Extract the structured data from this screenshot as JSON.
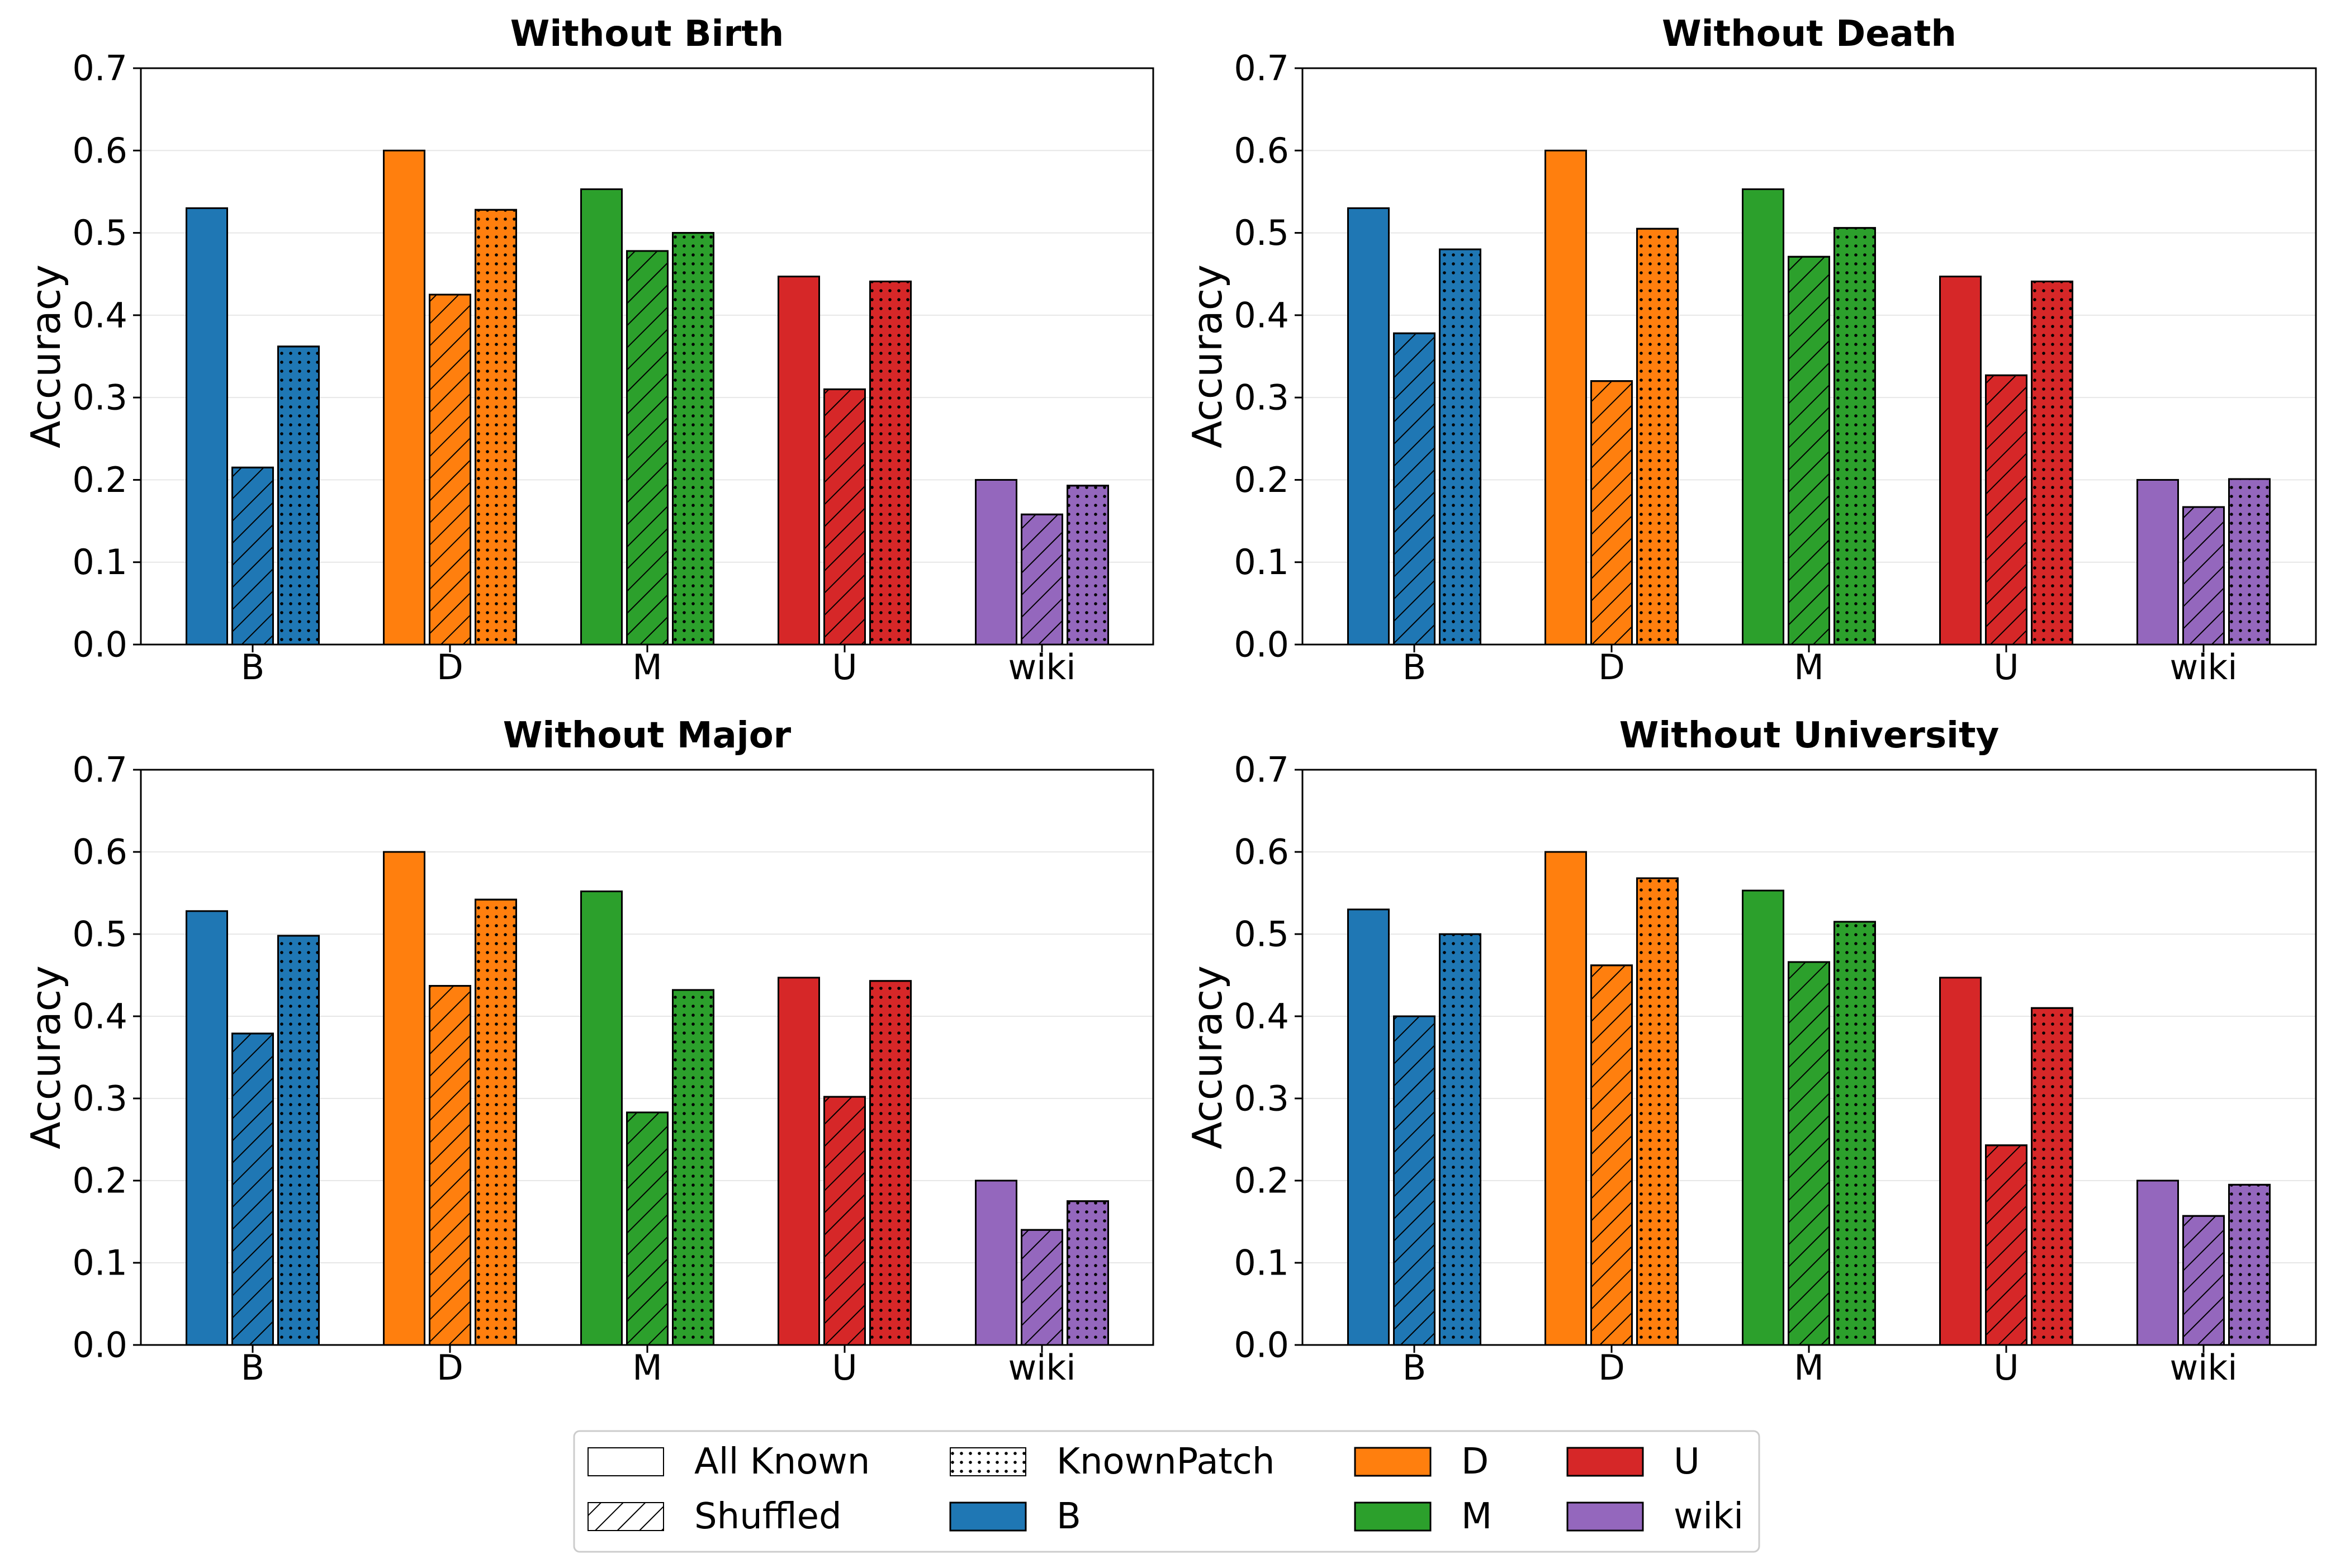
{
  "chart_data": {
    "type": "bar",
    "categories": [
      "B",
      "D",
      "M",
      "U",
      "wiki"
    ],
    "category_colors": {
      "B": "#1f77b4",
      "D": "#ff7f0e",
      "M": "#2ca02c",
      "U": "#d62728",
      "wiki": "#9467bd"
    },
    "ylabel": "Accuracy",
    "ylim": [
      0,
      0.7
    ],
    "yticks": [
      "0.0",
      "0.1",
      "0.2",
      "0.3",
      "0.4",
      "0.5",
      "0.6",
      "0.7"
    ],
    "grid": "horizontal",
    "series_styles": [
      {
        "name": "All Known",
        "pattern": "solid"
      },
      {
        "name": "Shuffled",
        "pattern": "hatch"
      },
      {
        "name": "KnownPatch",
        "pattern": "dots"
      }
    ],
    "panels": [
      {
        "title": "Without Birth",
        "values": {
          "All Known": [
            0.53,
            0.6,
            0.553,
            0.447,
            0.2
          ],
          "Shuffled": [
            0.215,
            0.425,
            0.478,
            0.31,
            0.158
          ],
          "KnownPatch": [
            0.362,
            0.528,
            0.5,
            0.441,
            0.193
          ]
        }
      },
      {
        "title": "Without Death",
        "values": {
          "All Known": [
            0.53,
            0.6,
            0.553,
            0.447,
            0.2
          ],
          "Shuffled": [
            0.378,
            0.32,
            0.471,
            0.327,
            0.167
          ],
          "KnownPatch": [
            0.48,
            0.505,
            0.506,
            0.441,
            0.201
          ]
        }
      },
      {
        "title": "Without Major",
        "values": {
          "All Known": [
            0.528,
            0.6,
            0.552,
            0.447,
            0.2
          ],
          "Shuffled": [
            0.379,
            0.437,
            0.283,
            0.302,
            0.14
          ],
          "KnownPatch": [
            0.498,
            0.542,
            0.432,
            0.443,
            0.175
          ]
        }
      },
      {
        "title": "Without University",
        "values": {
          "All Known": [
            0.53,
            0.6,
            0.553,
            0.447,
            0.2
          ],
          "Shuffled": [
            0.4,
            0.462,
            0.466,
            0.243,
            0.157
          ],
          "KnownPatch": [
            0.5,
            0.568,
            0.515,
            0.41,
            0.195
          ]
        }
      }
    ],
    "legend": {
      "placement": "bottom-center",
      "entries": [
        {
          "label": "All Known",
          "kind": "pattern",
          "pattern": "solid"
        },
        {
          "label": "Shuffled",
          "kind": "pattern",
          "pattern": "hatch"
        },
        {
          "label": "KnownPatch",
          "kind": "pattern",
          "pattern": "dots"
        },
        {
          "label": "B",
          "kind": "color",
          "color": "#1f77b4"
        },
        {
          "label": "D",
          "kind": "color",
          "color": "#ff7f0e"
        },
        {
          "label": "M",
          "kind": "color",
          "color": "#2ca02c"
        },
        {
          "label": "U",
          "kind": "color",
          "color": "#d62728"
        },
        {
          "label": "wiki",
          "kind": "color",
          "color": "#9467bd"
        }
      ]
    }
  }
}
